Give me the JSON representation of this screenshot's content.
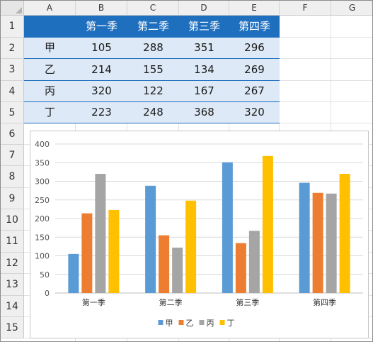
{
  "spreadsheet": {
    "columns": [
      "A",
      "B",
      "C",
      "D",
      "E",
      "F",
      "G"
    ],
    "rows": [
      "1",
      "2",
      "3",
      "4",
      "5",
      "6",
      "7",
      "8",
      "9",
      "10",
      "11",
      "12",
      "13",
      "14",
      "15"
    ],
    "table": {
      "header": [
        "",
        "第一季",
        "第二季",
        "第三季",
        "第四季"
      ],
      "rows": [
        [
          "甲",
          "105",
          "288",
          "351",
          "296"
        ],
        [
          "乙",
          "214",
          "155",
          "134",
          "269"
        ],
        [
          "丙",
          "320",
          "122",
          "167",
          "267"
        ],
        [
          "丁",
          "223",
          "248",
          "368",
          "320"
        ]
      ]
    }
  },
  "chart_data": {
    "type": "bar",
    "categories": [
      "第一季",
      "第二季",
      "第三季",
      "第四季"
    ],
    "series": [
      {
        "name": "甲",
        "color": "#5b9bd5",
        "values": [
          105,
          288,
          351,
          296
        ]
      },
      {
        "name": "乙",
        "color": "#ed7d31",
        "values": [
          214,
          155,
          134,
          269
        ]
      },
      {
        "name": "丙",
        "color": "#a5a5a5",
        "values": [
          320,
          122,
          167,
          267
        ]
      },
      {
        "name": "丁",
        "color": "#ffc000",
        "values": [
          223,
          248,
          368,
          320
        ]
      }
    ],
    "yticks": [
      "0",
      "50",
      "100",
      "150",
      "200",
      "250",
      "300",
      "350",
      "400"
    ],
    "ylim": [
      0,
      400
    ],
    "grid": true,
    "legend": "bottom"
  }
}
